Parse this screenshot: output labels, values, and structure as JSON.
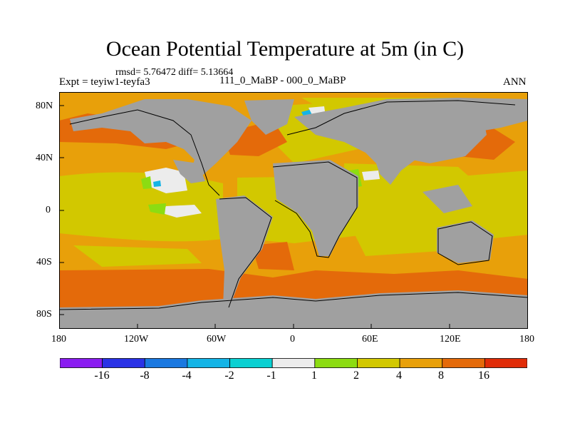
{
  "title": "Ocean Potential Temperature at 5m (in C)",
  "stats_line": "rmsd= 5.76472 diff= 5.13664",
  "expt_label": "Expt = teyiw1-teyfa3",
  "experiment_name": "111_0_MaBP - 000_0_MaBP",
  "season": "ANN",
  "lat_ticks": [
    "80N",
    "40N",
    "0",
    "40S",
    "80S"
  ],
  "lon_ticks": [
    "180",
    "120W",
    "60W",
    "0",
    "60E",
    "120E",
    "180"
  ],
  "colorbar": {
    "labels": [
      "-16",
      "-8",
      "-4",
      "-2",
      "-1",
      "1",
      "2",
      "4",
      "8",
      "16"
    ],
    "colors": [
      "#8a1cf0",
      "#2a32e6",
      "#1a78e0",
      "#14b4e6",
      "#0ad0d2",
      "#ececec",
      "#8cdc12",
      "#d2c800",
      "#e8a00a",
      "#e46a0a",
      "#e02c08"
    ]
  },
  "map_colors": {
    "land": "#a0a0a0",
    "warm4_8": "#e8a00a",
    "warm2_4": "#d2c800",
    "warm8_16": "#e46a0a",
    "warm16": "#e02c08",
    "neutral": "#ececec",
    "warm1_2": "#8cdc12",
    "cool": "#14b4e6"
  }
}
